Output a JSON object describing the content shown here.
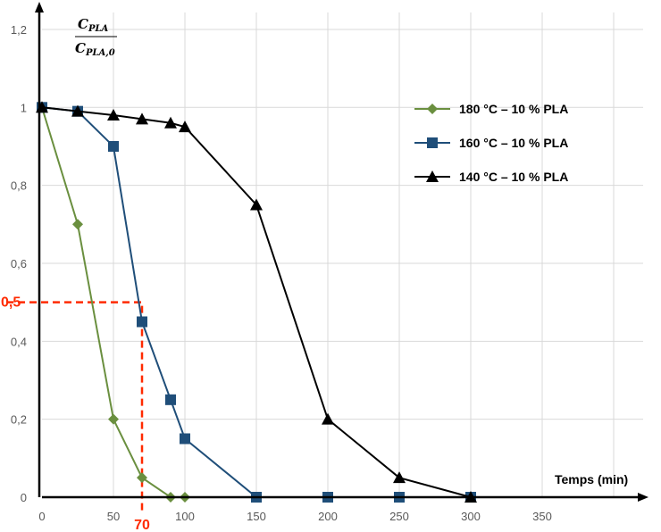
{
  "chart_data": {
    "type": "line",
    "title": "",
    "xlabel": "Temps (min)",
    "ylabel_num": "C",
    "ylabel_num_sub": "PLA",
    "ylabel_den": "C",
    "ylabel_den_sub": "PLA,0",
    "xlim": [
      0,
      420
    ],
    "ylim": [
      0,
      1.2
    ],
    "x_ticks": [
      "0",
      "50",
      "100",
      "150",
      "200",
      "250",
      "300",
      "350"
    ],
    "x_tick_values": [
      0,
      50,
      100,
      150,
      200,
      250,
      300,
      350
    ],
    "y_ticks": [
      "0",
      "0,2",
      "0,4",
      "0,6",
      "0,8",
      "1",
      "1,2"
    ],
    "y_tick_values": [
      0,
      0.2,
      0.4,
      0.6,
      0.8,
      1.0,
      1.2
    ],
    "grid": true,
    "legend_position": "right",
    "series": [
      {
        "name": "180 °C – 10 % PLA",
        "color": "#6a8f3f",
        "marker": "diamond",
        "x": [
          0,
          25,
          50,
          70,
          90,
          100
        ],
        "y": [
          1,
          0.7,
          0.2,
          0.05,
          0,
          0
        ]
      },
      {
        "name": "160 °C – 10 % PLA",
        "color": "#1f4e79",
        "marker": "square",
        "x": [
          0,
          25,
          50,
          70,
          90,
          100,
          150,
          200,
          250,
          300
        ],
        "y": [
          1,
          0.99,
          0.9,
          0.45,
          0.25,
          0.15,
          0,
          0,
          0,
          0
        ]
      },
      {
        "name": "140 °C – 10 % PLA",
        "color": "#000000",
        "marker": "triangle",
        "x": [
          0,
          25,
          50,
          70,
          90,
          100,
          150,
          200,
          250,
          300
        ],
        "y": [
          1,
          0.99,
          0.98,
          0.97,
          0.96,
          0.95,
          0.75,
          0.2,
          0.05,
          0
        ]
      }
    ],
    "annotations": {
      "y_value": 0.5,
      "y_label": "0,5",
      "x_value": 70,
      "x_label": "70",
      "color": "#ff2a00"
    }
  }
}
